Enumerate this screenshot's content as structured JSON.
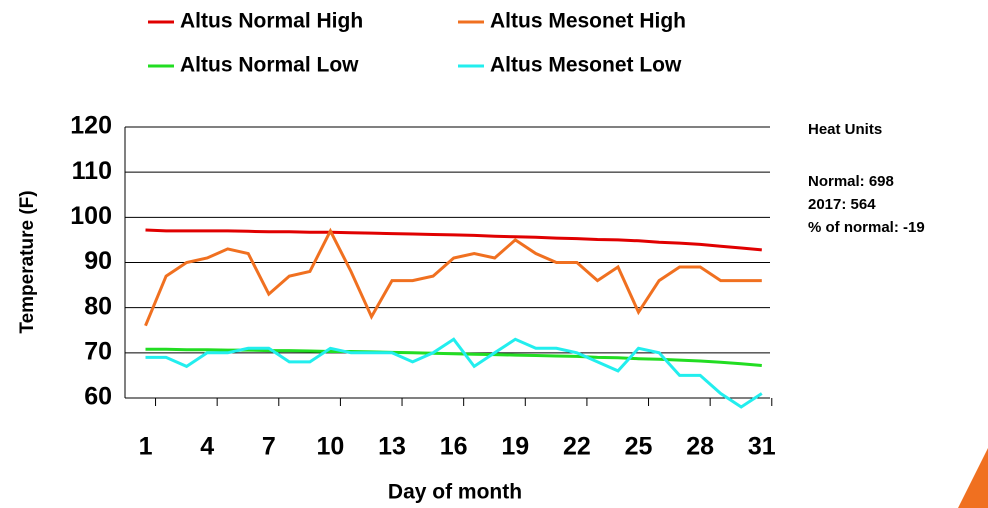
{
  "chart_data": {
    "type": "line",
    "x_label": "Day of month",
    "y_label": "Temperature (F)",
    "x": [
      1,
      2,
      3,
      4,
      5,
      6,
      7,
      8,
      9,
      10,
      11,
      12,
      13,
      14,
      15,
      16,
      17,
      18,
      19,
      20,
      21,
      22,
      23,
      24,
      25,
      26,
      27,
      28,
      29,
      30,
      31
    ],
    "series": [
      {
        "name": "Altus Normal High",
        "color": "#e00000",
        "values": [
          97.2,
          97,
          97,
          97,
          97,
          96.9,
          96.8,
          96.8,
          96.7,
          96.7,
          96.6,
          96.5,
          96.4,
          96.3,
          96.2,
          96.1,
          96,
          95.8,
          95.7,
          95.6,
          95.4,
          95.3,
          95.1,
          95,
          94.8,
          94.5,
          94.3,
          94,
          93.6,
          93.2,
          92.8
        ]
      },
      {
        "name": "Altus Mesonet High",
        "color": "#f07020",
        "values": [
          76,
          87,
          90,
          91,
          93,
          92,
          83,
          87,
          88,
          97,
          88,
          78,
          86,
          86,
          87,
          91,
          92,
          91,
          95,
          92,
          90,
          90,
          86,
          89,
          79,
          86,
          89,
          89,
          86,
          86,
          86
        ]
      },
      {
        "name": "Altus Normal Low",
        "color": "#22dd22",
        "values": [
          70.8,
          70.8,
          70.7,
          70.7,
          70.6,
          70.6,
          70.5,
          70.5,
          70.4,
          70.3,
          70.3,
          70.2,
          70.1,
          70,
          69.9,
          69.8,
          69.7,
          69.6,
          69.5,
          69.4,
          69.3,
          69.2,
          69,
          68.9,
          68.7,
          68.6,
          68.4,
          68.2,
          67.9,
          67.6,
          67.2
        ]
      },
      {
        "name": "Altus Mesonet Low",
        "color": "#22eeee",
        "values": [
          69,
          69,
          67,
          70,
          70,
          71,
          71,
          68,
          68,
          71,
          70,
          70,
          70,
          68,
          70,
          73,
          67,
          70,
          73,
          71,
          71,
          70,
          68,
          66,
          71,
          70,
          65,
          65,
          61,
          58,
          61
        ]
      }
    ],
    "xlim": [
      0,
      31.4
    ],
    "xticks": [
      1,
      4,
      7,
      10,
      13,
      16,
      19,
      22,
      25,
      28,
      31
    ],
    "ylim": [
      60,
      120
    ],
    "yticks": [
      60,
      70,
      80,
      90,
      100,
      110,
      120
    ],
    "grid": true,
    "annotations": [
      "Heat Units",
      "Normal:  698",
      "2017:  564",
      "% of normal:  -19"
    ]
  }
}
